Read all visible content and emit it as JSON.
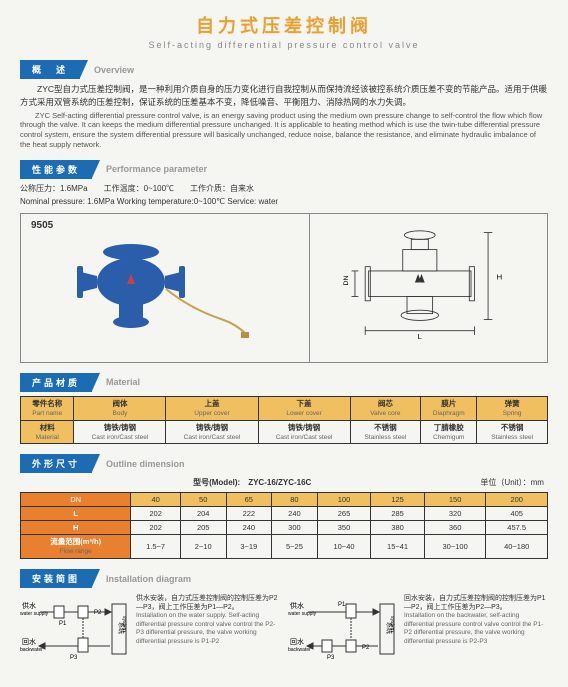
{
  "title_cn": "自力式压差控制阀",
  "title_en": "Self-acting differential pressure control valve",
  "sections": {
    "overview": {
      "cn": "概　述",
      "en": "Overview"
    },
    "perf": {
      "cn": "性能参数",
      "en": "Performance parameter"
    },
    "material": {
      "cn": "产品材质",
      "en": "Material"
    },
    "outline": {
      "cn": "外形尺寸",
      "en": "Outline dimension"
    },
    "install": {
      "cn": "安装简图",
      "en": "Installation diagram"
    }
  },
  "overview_cn": "ZYC型自力式压差控制阀，是一种利用介质自身的压力变化进行自我控制从而保持流经该被控系统介质压差不变的节能产品。适用于供暖方式采用双管系统的压差控制，保证系统的压差基本不变，降低噪音、平衡阻力、消除热网的水力失调。",
  "overview_en": "ZYC Self-acting differential pressure control valve, is an energy saving product using the medium own pressure change to self-control the flow which flow through the valve. It can keeps the medium differential pressure unchanged. It is applicable to heating method which is use the twin-tube differential pressure control system, ensure the system differential pressure will basically unchanged, reduce noise, balance the resistance, and eliminate hydraulic imbalance of the heat supply network.",
  "spec_cn": "公称压力：1.6MPa　　工作温度：0~100℃　　工作介质：自来水",
  "spec_en": "Nominal pressure: 1.6MPa  Working temperature:0~100℃  Service:  water",
  "prod_num": "9505",
  "mat_headers": [
    {
      "cn": "零件名称",
      "en": "Part name"
    },
    {
      "cn": "阀体",
      "en": "Body"
    },
    {
      "cn": "上盖",
      "en": "Upper cover"
    },
    {
      "cn": "下盖",
      "en": "Lower cover"
    },
    {
      "cn": "阀芯",
      "en": "Valve core"
    },
    {
      "cn": "膜片",
      "en": "Diaphragm"
    },
    {
      "cn": "弹簧",
      "en": "Spring"
    }
  ],
  "mat_row": [
    {
      "cn": "材料",
      "en": "Material"
    },
    {
      "cn": "铸铁/铸钢",
      "en": "Cast iron/Cast steel"
    },
    {
      "cn": "铸铁/铸钢",
      "en": "Cast iron/Cast steel"
    },
    {
      "cn": "铸铁/铸钢",
      "en": "Cast iron/Cast steel"
    },
    {
      "cn": "不锈钢",
      "en": "Stainless steel"
    },
    {
      "cn": "丁腈橡胶",
      "en": "Chemigum"
    },
    {
      "cn": "不锈钢",
      "en": "Stainless steel"
    }
  ],
  "model_label": "型号(Model):",
  "model_value": "ZYC-16/ZYC-16C",
  "unit_label": "单位（Unit）：mm",
  "dim_headers": [
    "DN",
    "40",
    "50",
    "65",
    "80",
    "100",
    "125",
    "150",
    "200"
  ],
  "dim_rows": [
    {
      "h": "L",
      "v": [
        "202",
        "204",
        "222",
        "240",
        "265",
        "285",
        "320",
        "405"
      ]
    },
    {
      "h": "H",
      "v": [
        "202",
        "205",
        "240",
        "300",
        "350",
        "380",
        "360",
        "457.5"
      ]
    },
    {
      "h": "流量范围(m³/h)",
      "hen": "Flow range",
      "v": [
        "1.5~7",
        "2~10",
        "3~19",
        "5~25",
        "10~40",
        "15~41",
        "30~100",
        "40~180"
      ]
    }
  ],
  "install_left": {
    "cn": "供水安装，自力式压差控制阀的控制压差为P2—P3，阀上工作压差为P1—P2。",
    "en": "Installation on the water supply. Self-acting differential pressure control valve control the P2-P3 differential pressure, the valve working differential pressure is P1-P2"
  },
  "install_right": {
    "cn": "回水安装，自力式压差控制阀的控制压差为P1—P2，阀上工作压差为P2—P3。",
    "en": "Installation on the backwater, self-acting differential pressure control valve control the P1-P2 differential pressure, the valve working differential pressure is P2-P3"
  },
  "labels": {
    "ws_cn": "供水",
    "ws_en": "water supply",
    "bw_cn": "回水",
    "bw_en": "backwater",
    "sys_cn": "系统",
    "sys_en": "system"
  },
  "colors": {
    "blue": "#1b6cb3",
    "yellow": "#f0c060",
    "orange": "#e88030",
    "valve": "#2a5eaa"
  }
}
